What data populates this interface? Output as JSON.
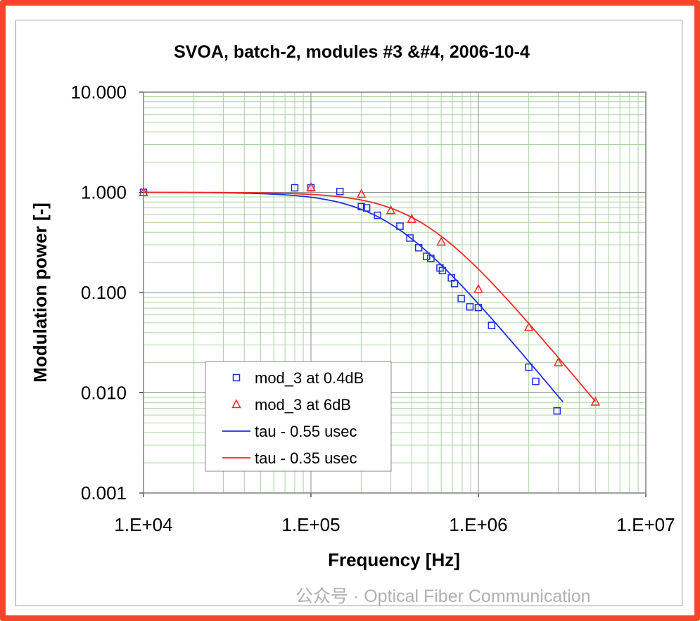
{
  "chart_data": {
    "type": "scatter",
    "title": "SVOA, batch-2, modules #3 &#4, 2006-10-4",
    "xlabel": "Frequency [Hz]",
    "ylabel": "Modulation power [-]",
    "xscale": "log",
    "yscale": "log",
    "xlim": [
      10000,
      10000000
    ],
    "ylim": [
      0.001,
      10
    ],
    "xticks": [
      {
        "v": 10000,
        "label": "1.E+04"
      },
      {
        "v": 100000,
        "label": "1.E+05"
      },
      {
        "v": 1000000,
        "label": "1.E+06"
      },
      {
        "v": 10000000,
        "label": "1.E+07"
      }
    ],
    "yticks": [
      {
        "v": 10,
        "label": "10.000"
      },
      {
        "v": 1,
        "label": "1.000"
      },
      {
        "v": 0.1,
        "label": "0.100"
      },
      {
        "v": 0.01,
        "label": "0.010"
      },
      {
        "v": 0.001,
        "label": "0.001"
      }
    ],
    "grid": true,
    "legend_position": "lower-left",
    "series": [
      {
        "name": "mod_3 at 0.4dB",
        "kind": "marker",
        "marker": "square",
        "color": "#1f2fe0",
        "x": [
          10000,
          80000,
          100000,
          149000,
          200000,
          215000,
          250000,
          340000,
          390000,
          440000,
          490000,
          520000,
          590000,
          610000,
          690000,
          720000,
          790000,
          890000,
          1000000,
          1200000,
          2000000,
          2200000,
          2950000
        ],
        "y": [
          1.0,
          1.11,
          1.11,
          1.02,
          0.72,
          0.7,
          0.59,
          0.46,
          0.35,
          0.28,
          0.23,
          0.22,
          0.176,
          0.166,
          0.14,
          0.123,
          0.087,
          0.072,
          0.071,
          0.047,
          0.018,
          0.013,
          0.0066
        ]
      },
      {
        "name": "mod_3 at 6dB",
        "kind": "marker",
        "marker": "triangle",
        "color": "#ee2a2a",
        "x": [
          10000,
          100000,
          200000,
          300000,
          400000,
          600000,
          1000000,
          2000000,
          3000000,
          5000000
        ],
        "y": [
          1.0,
          1.12,
          0.96,
          0.66,
          0.54,
          0.32,
          0.108,
          0.045,
          0.02,
          0.0081
        ]
      },
      {
        "name": "tau - 0.55 usec",
        "kind": "line",
        "color": "#1f2fe0",
        "tau_usec": 0.55,
        "x_range": [
          10000,
          3200000
        ]
      },
      {
        "name": "tau - 0.35 usec",
        "kind": "line",
        "color": "#ee2a2a",
        "tau_usec": 0.35,
        "x_range": [
          10000,
          5000000
        ]
      }
    ]
  },
  "watermark": "公众号 · Optical Fiber Communication"
}
